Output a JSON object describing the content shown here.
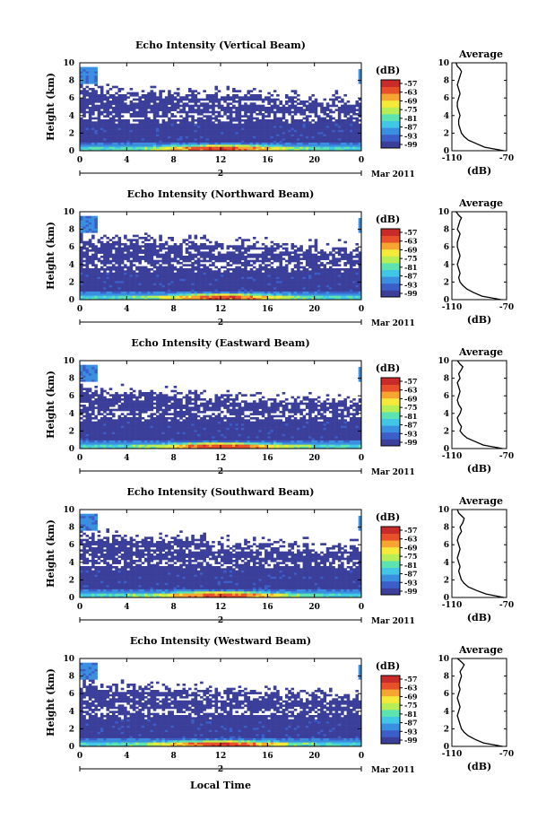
{
  "shared": {
    "ylabel": "Height (km)",
    "xlabel": "Local Time",
    "date_day": "2",
    "date_label": "Mar 2011",
    "colorbar_unit": "(dB)",
    "colorbar_ticks": [
      "-57",
      "-63",
      "-69",
      "-75",
      "-81",
      "-87",
      "-93",
      "-99"
    ],
    "colorbar_colors": [
      "#3b3f9a",
      "#3c5ec8",
      "#3a8fe0",
      "#41c6e6",
      "#5ce3b0",
      "#b8ee55",
      "#f5e93a",
      "#f7a531",
      "#e8502a",
      "#c92a2a"
    ],
    "avg_title": "Average",
    "avg_xlabel": "(dB)",
    "avg_xticks": [
      "-110",
      "-70"
    ],
    "x_ticks": [
      "0",
      "4",
      "8",
      "12",
      "16",
      "20",
      "0"
    ],
    "y_ticks": [
      "0",
      "2",
      "4",
      "6",
      "8",
      "10"
    ]
  },
  "chart_data": [
    {
      "type": "heatmap",
      "title": "Echo Intensity (Vertical Beam)",
      "xlim": [
        0,
        24
      ],
      "ylim": [
        0,
        10
      ],
      "avg_profile": {
        "xlim": [
          -110,
          -70
        ],
        "x": [
          -72,
          -86,
          -92,
          -98,
          -101,
          -103,
          -104,
          -105,
          -105,
          -104,
          -105,
          -106,
          -106,
          -105,
          -104,
          -105,
          -106,
          -105,
          -104,
          -103,
          -104,
          -106,
          -107
        ],
        "y": [
          0,
          0.4,
          0.8,
          1.2,
          1.6,
          2.0,
          2.5,
          3.0,
          3.5,
          4.0,
          4.5,
          5.0,
          5.5,
          6.0,
          6.5,
          7.0,
          7.5,
          8.0,
          8.5,
          9.0,
          9.3,
          9.6,
          10
        ]
      }
    },
    {
      "type": "heatmap",
      "title": "Echo Intensity (Northward Beam)",
      "xlim": [
        0,
        24
      ],
      "ylim": [
        0,
        10
      ],
      "avg_profile": {
        "xlim": [
          -110,
          -70
        ],
        "x": [
          -74,
          -88,
          -94,
          -99,
          -102,
          -104,
          -105,
          -104,
          -105,
          -106,
          -105,
          -104,
          -105,
          -106,
          -106,
          -105,
          -104,
          -106,
          -105,
          -104,
          -103,
          -105,
          -107
        ],
        "y": [
          0,
          0.4,
          0.8,
          1.2,
          1.6,
          2.0,
          2.5,
          3.0,
          3.5,
          4.0,
          4.5,
          5.0,
          5.5,
          6.0,
          6.5,
          7.0,
          7.5,
          8.0,
          8.5,
          9.0,
          9.3,
          9.6,
          10
        ]
      }
    },
    {
      "type": "heatmap",
      "title": "Echo Intensity (Eastward Beam)",
      "xlim": [
        0,
        24
      ],
      "ylim": [
        0,
        10
      ],
      "avg_profile": {
        "xlim": [
          -110,
          -70
        ],
        "x": [
          -73,
          -87,
          -93,
          -99,
          -102,
          -104,
          -103,
          -105,
          -106,
          -104,
          -103,
          -105,
          -106,
          -105,
          -104,
          -105,
          -106,
          -104,
          -105,
          -103,
          -102,
          -104,
          -106
        ],
        "y": [
          0,
          0.4,
          0.8,
          1.2,
          1.6,
          2.0,
          2.5,
          3.0,
          3.5,
          4.0,
          4.5,
          5.0,
          5.5,
          6.0,
          6.5,
          7.0,
          7.5,
          8.0,
          8.5,
          9.0,
          9.3,
          9.6,
          10
        ]
      }
    },
    {
      "type": "heatmap",
      "title": "Echo Intensity (Southward Beam)",
      "xlim": [
        0,
        24
      ],
      "ylim": [
        0,
        10
      ],
      "avg_profile": {
        "xlim": [
          -110,
          -70
        ],
        "x": [
          -72,
          -85,
          -92,
          -98,
          -101,
          -103,
          -104,
          -105,
          -104,
          -105,
          -106,
          -105,
          -104,
          -105,
          -106,
          -105,
          -103,
          -104,
          -102,
          -101,
          -103,
          -105,
          -106
        ],
        "y": [
          0,
          0.4,
          0.8,
          1.2,
          1.6,
          2.0,
          2.5,
          3.0,
          3.5,
          4.0,
          4.5,
          5.0,
          5.5,
          6.0,
          6.5,
          7.0,
          7.5,
          8.0,
          8.5,
          9.0,
          9.3,
          9.6,
          10
        ]
      }
    },
    {
      "type": "heatmap",
      "title": "Echo Intensity (Westward Beam)",
      "xlim": [
        0,
        24
      ],
      "ylim": [
        0,
        10
      ],
      "avg_profile": {
        "xlim": [
          -110,
          -70
        ],
        "x": [
          -73,
          -87,
          -93,
          -98,
          -101,
          -103,
          -104,
          -105,
          -106,
          -105,
          -104,
          -105,
          -106,
          -105,
          -104,
          -105,
          -104,
          -103,
          -104,
          -102,
          -101,
          -103,
          -106
        ],
        "y": [
          0,
          0.4,
          0.8,
          1.2,
          1.6,
          2.0,
          2.5,
          3.0,
          3.5,
          4.0,
          4.5,
          5.0,
          5.5,
          6.0,
          6.5,
          7.0,
          7.5,
          8.0,
          8.5,
          9.0,
          9.3,
          9.6,
          10
        ]
      }
    }
  ]
}
